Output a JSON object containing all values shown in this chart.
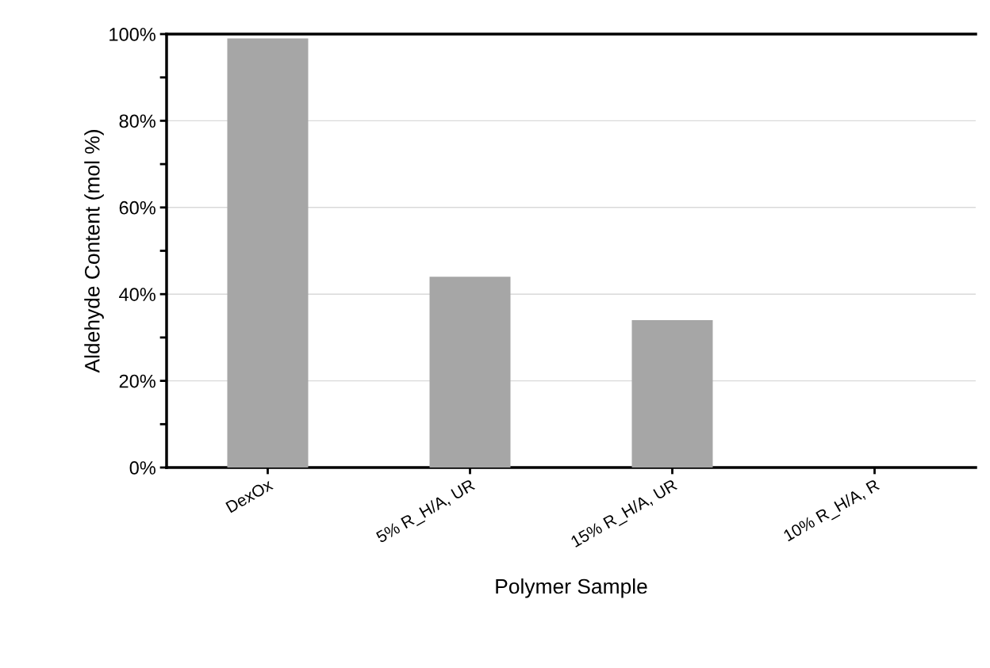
{
  "chart_data": {
    "type": "bar",
    "xlabel": "Polymer Sample",
    "ylabel": "Aldehyde Content (mol %)",
    "categories": [
      "DexOx",
      "5% R_H/A, UR",
      "15% R_H/A, UR",
      "10% R_H/A, R"
    ],
    "values": [
      99,
      44,
      34,
      0
    ],
    "color": "#a6a6a6",
    "ylim": [
      0,
      100
    ],
    "yticks": [
      {
        "value": 0,
        "label": "0%"
      },
      {
        "value": 10,
        "label": null
      },
      {
        "value": 20,
        "label": "20%"
      },
      {
        "value": 30,
        "label": null
      },
      {
        "value": 40,
        "label": "40%"
      },
      {
        "value": 50,
        "label": null
      },
      {
        "value": 60,
        "label": "60%"
      },
      {
        "value": 70,
        "label": null
      },
      {
        "value": 80,
        "label": "80%"
      },
      {
        "value": 90,
        "label": null
      },
      {
        "value": 100,
        "label": "100%"
      }
    ],
    "grid": "y"
  }
}
